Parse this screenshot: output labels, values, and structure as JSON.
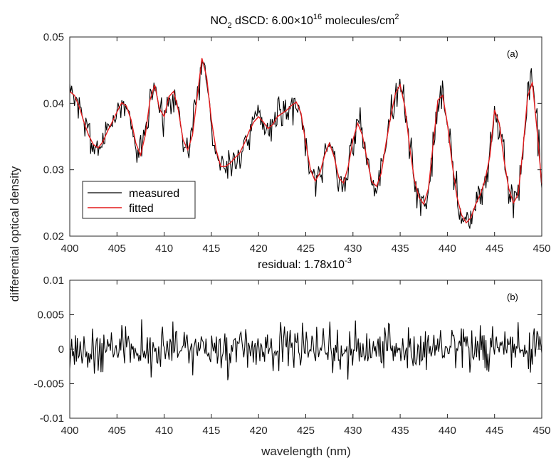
{
  "colors": {
    "measured": "#000000",
    "fitted": "#e41a1c",
    "axis": "#262626"
  },
  "chart_data": [
    {
      "type": "line",
      "title_parts": [
        "NO",
        "2",
        " dSCD: 6.00",
        "×",
        "10",
        "16",
        " molecules/cm",
        "2"
      ],
      "panel_tag": "(a)",
      "ylabel": "differential optical density",
      "xlim": [
        400,
        450
      ],
      "ylim": [
        0.02,
        0.05
      ],
      "x_ticks": [
        400,
        405,
        410,
        415,
        420,
        425,
        430,
        435,
        440,
        445,
        450
      ],
      "x_tick_labels": [
        "400",
        "405",
        "410",
        "415",
        "420",
        "425",
        "430",
        "435",
        "440",
        "445",
        "450"
      ],
      "y_ticks": [
        0.02,
        0.03,
        0.04,
        0.05
      ],
      "y_tick_labels": [
        "0.02",
        "0.03",
        "0.04",
        "0.05"
      ],
      "legend": {
        "position": "bottom-left",
        "entries": [
          "measured",
          "fitted"
        ]
      },
      "series": [
        {
          "name": "fitted",
          "x": [
            400,
            400.5,
            401,
            401.5,
            402,
            402.5,
            403,
            403.5,
            404,
            404.5,
            405,
            405.5,
            406,
            406.5,
            407,
            407.5,
            408,
            408.5,
            409,
            409.5,
            410,
            410.5,
            411,
            411.5,
            412,
            412.5,
            413,
            413.5,
            414,
            414.5,
            415,
            415.5,
            416,
            416.5,
            417,
            417.5,
            418,
            418.5,
            419,
            419.5,
            420,
            420.5,
            421,
            421.5,
            422,
            422.5,
            423,
            423.5,
            424,
            424.5,
            425,
            425.5,
            426,
            426.5,
            427,
            427.5,
            428,
            428.5,
            429,
            429.5,
            430,
            430.5,
            431,
            431.5,
            432,
            432.5,
            433,
            433.5,
            434,
            434.5,
            435,
            435.5,
            436,
            436.5,
            437,
            437.5,
            438,
            438.5,
            439,
            439.5,
            440,
            440.5,
            441,
            441.5,
            442,
            442.5,
            443,
            443.5,
            444,
            444.5,
            445,
            445.5,
            446,
            446.5,
            447,
            447.5,
            448,
            448.5,
            449,
            449.5,
            450
          ],
          "y": [
            0.0418,
            0.0412,
            0.0395,
            0.0372,
            0.0352,
            0.0338,
            0.0333,
            0.0342,
            0.0358,
            0.0372,
            0.0387,
            0.0401,
            0.0396,
            0.0375,
            0.034,
            0.0322,
            0.0352,
            0.0405,
            0.0428,
            0.0392,
            0.038,
            0.041,
            0.0418,
            0.039,
            0.0345,
            0.033,
            0.0352,
            0.041,
            0.0468,
            0.044,
            0.0375,
            0.033,
            0.0305,
            0.0305,
            0.031,
            0.0318,
            0.0325,
            0.034,
            0.0358,
            0.0372,
            0.038,
            0.0372,
            0.0362,
            0.0368,
            0.038,
            0.0385,
            0.039,
            0.0397,
            0.0402,
            0.0385,
            0.034,
            0.03,
            0.0283,
            0.0295,
            0.0322,
            0.034,
            0.032,
            0.0288,
            0.028,
            0.0305,
            0.0345,
            0.037,
            0.0352,
            0.0315,
            0.0282,
            0.0275,
            0.0295,
            0.034,
            0.038,
            0.0415,
            0.0428,
            0.0395,
            0.0335,
            0.0285,
            0.0258,
            0.0248,
            0.0272,
            0.034,
            0.0405,
            0.0412,
            0.037,
            0.031,
            0.026,
            0.0232,
            0.022,
            0.0228,
            0.0248,
            0.0263,
            0.0285,
            0.032,
            0.039,
            0.037,
            0.0315,
            0.0272,
            0.025,
            0.0263,
            0.033,
            0.041,
            0.0432,
            0.036,
            0.0278
          ]
        },
        {
          "name": "measured",
          "noise_seed": 7,
          "noise_amplitude": 0.0024,
          "x_start": 400,
          "x_end": 450,
          "points": 500
        }
      ]
    },
    {
      "type": "line",
      "title": "residual: 1.78x10",
      "title_sup": "-3",
      "panel_tag": "(b)",
      "xlabel": "wavelength (nm)",
      "xlim": [
        400,
        450
      ],
      "ylim": [
        -0.01,
        0.01
      ],
      "x_ticks": [
        400,
        405,
        410,
        415,
        420,
        425,
        430,
        435,
        440,
        445,
        450
      ],
      "x_tick_labels": [
        "400",
        "405",
        "410",
        "415",
        "420",
        "425",
        "430",
        "435",
        "440",
        "445",
        "450"
      ],
      "y_ticks": [
        -0.01,
        -0.005,
        0,
        0.005,
        0.01
      ],
      "y_tick_labels": [
        "-0.01",
        "-0.005",
        "0",
        "0.005",
        "0.01"
      ],
      "series": [
        {
          "name": "residual",
          "noise_seed": 21,
          "noise_amplitude": 0.00178,
          "x_start": 400,
          "x_end": 450,
          "points": 500
        }
      ]
    }
  ]
}
